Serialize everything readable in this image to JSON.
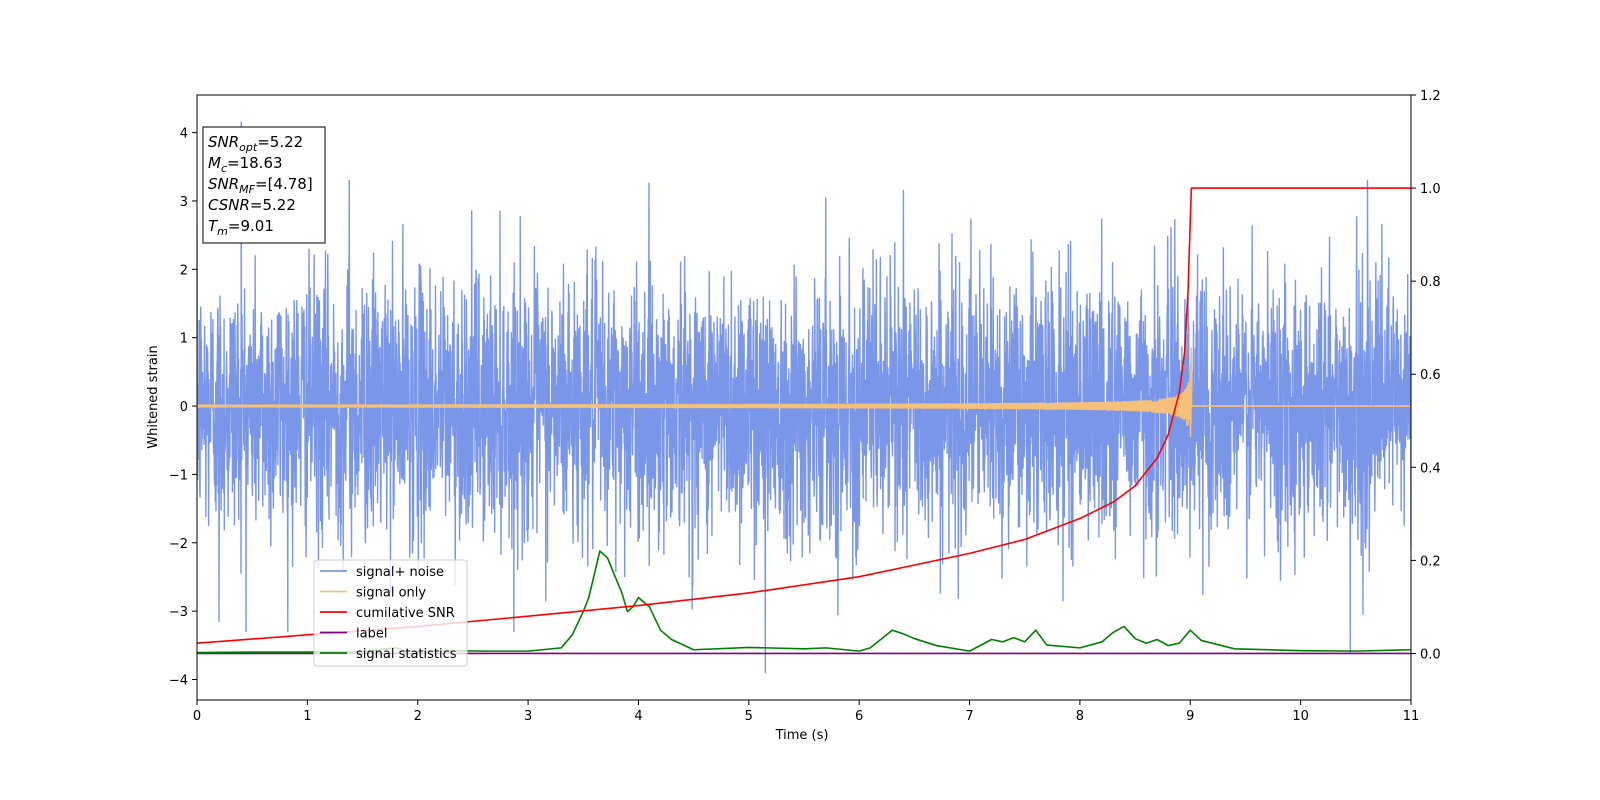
{
  "chart_data": {
    "type": "line",
    "xlabel": "Time (s)",
    "ylabel": "Whitened strain",
    "xlim": [
      0,
      11
    ],
    "ylim": [
      -4.3,
      4.55
    ],
    "ylim_right": [
      -0.1,
      1.2
    ],
    "x_ticks": [
      "0",
      "1",
      "2",
      "3",
      "4",
      "5",
      "6",
      "7",
      "8",
      "9",
      "10",
      "11"
    ],
    "y_ticks": [
      "4",
      "3",
      "2",
      "1",
      "0",
      "−1",
      "−2",
      "−3",
      "−4"
    ],
    "y_ticks_right": [
      "1.2",
      "1.0",
      "0.8",
      "0.6",
      "0.4",
      "0.2",
      "0.0"
    ],
    "grid": false,
    "legend_position": "lower-left",
    "annotation": {
      "lines": [
        {
          "main": "SNR",
          "sub": "opt",
          "rest": "=5.22"
        },
        {
          "main": "M",
          "sub": "c",
          "rest": "=18.63"
        },
        {
          "main": "SNR",
          "sub": "MF",
          "rest": "=[4.78]"
        },
        {
          "main": "CSNR",
          "sub": "",
          "rest": "=5.22"
        },
        {
          "main": "T",
          "sub": "m",
          "rest": "=9.01"
        }
      ]
    },
    "series": [
      {
        "name": "signal+ noise",
        "color": "#7a96e8",
        "axis": "left",
        "kind": "noise",
        "amplitude_std": 0.95,
        "notable_spikes": [
          [
            0.4,
            4.15
          ],
          [
            1.38,
            3.3
          ],
          [
            5.15,
            -3.9
          ],
          [
            6.4,
            3.15
          ],
          [
            10.45,
            -3.6
          ],
          [
            0.2,
            -3.15
          ]
        ]
      },
      {
        "name": "signal only",
        "color": "#f5c07a",
        "axis": "left",
        "kind": "chirp",
        "merger_time": 9.01,
        "peak_amplitude": 1.0
      },
      {
        "name": "cumilative SNR",
        "color": "#ff0000",
        "axis": "right",
        "x": [
          0,
          1,
          2,
          3,
          4,
          5,
          6,
          7,
          7.5,
          8,
          8.3,
          8.5,
          8.7,
          8.8,
          8.9,
          8.95,
          8.98,
          9.0,
          9.01,
          11
        ],
        "y": [
          0.022,
          0.04,
          0.058,
          0.08,
          0.103,
          0.13,
          0.165,
          0.215,
          0.245,
          0.29,
          0.325,
          0.36,
          0.42,
          0.47,
          0.56,
          0.65,
          0.78,
          0.93,
          1.0,
          1.0
        ]
      },
      {
        "name": "label",
        "color": "#800080",
        "axis": "right",
        "x": [
          0,
          11
        ],
        "y": [
          0.0,
          0.0
        ]
      },
      {
        "name": "signal statistics",
        "color": "#008000",
        "axis": "right",
        "x": [
          0,
          0.5,
          1,
          1.5,
          1.8,
          1.9,
          2.0,
          2.3,
          2.6,
          3.0,
          3.3,
          3.4,
          3.5,
          3.55,
          3.65,
          3.72,
          3.78,
          3.85,
          3.9,
          3.95,
          4.0,
          4.05,
          4.1,
          4.15,
          4.2,
          4.3,
          4.5,
          5.0,
          5.5,
          5.7,
          6.0,
          6.1,
          6.3,
          6.4,
          6.5,
          6.7,
          7.0,
          7.2,
          7.3,
          7.4,
          7.5,
          7.6,
          7.7,
          8.0,
          8.2,
          8.3,
          8.4,
          8.5,
          8.6,
          8.7,
          8.8,
          8.9,
          9.0,
          9.1,
          9.4,
          10.0,
          10.5,
          11.0
        ],
        "y": [
          0.002,
          0.003,
          0.003,
          0.004,
          0.012,
          0.005,
          0.004,
          0.006,
          0.005,
          0.005,
          0.012,
          0.04,
          0.09,
          0.12,
          0.22,
          0.205,
          0.17,
          0.13,
          0.09,
          0.1,
          0.12,
          0.11,
          0.1,
          0.075,
          0.05,
          0.03,
          0.008,
          0.013,
          0.01,
          0.012,
          0.005,
          0.012,
          0.05,
          0.042,
          0.032,
          0.017,
          0.005,
          0.03,
          0.025,
          0.034,
          0.025,
          0.05,
          0.018,
          0.012,
          0.025,
          0.045,
          0.058,
          0.032,
          0.022,
          0.03,
          0.017,
          0.022,
          0.05,
          0.028,
          0.01,
          0.006,
          0.005,
          0.008
        ]
      }
    ]
  }
}
